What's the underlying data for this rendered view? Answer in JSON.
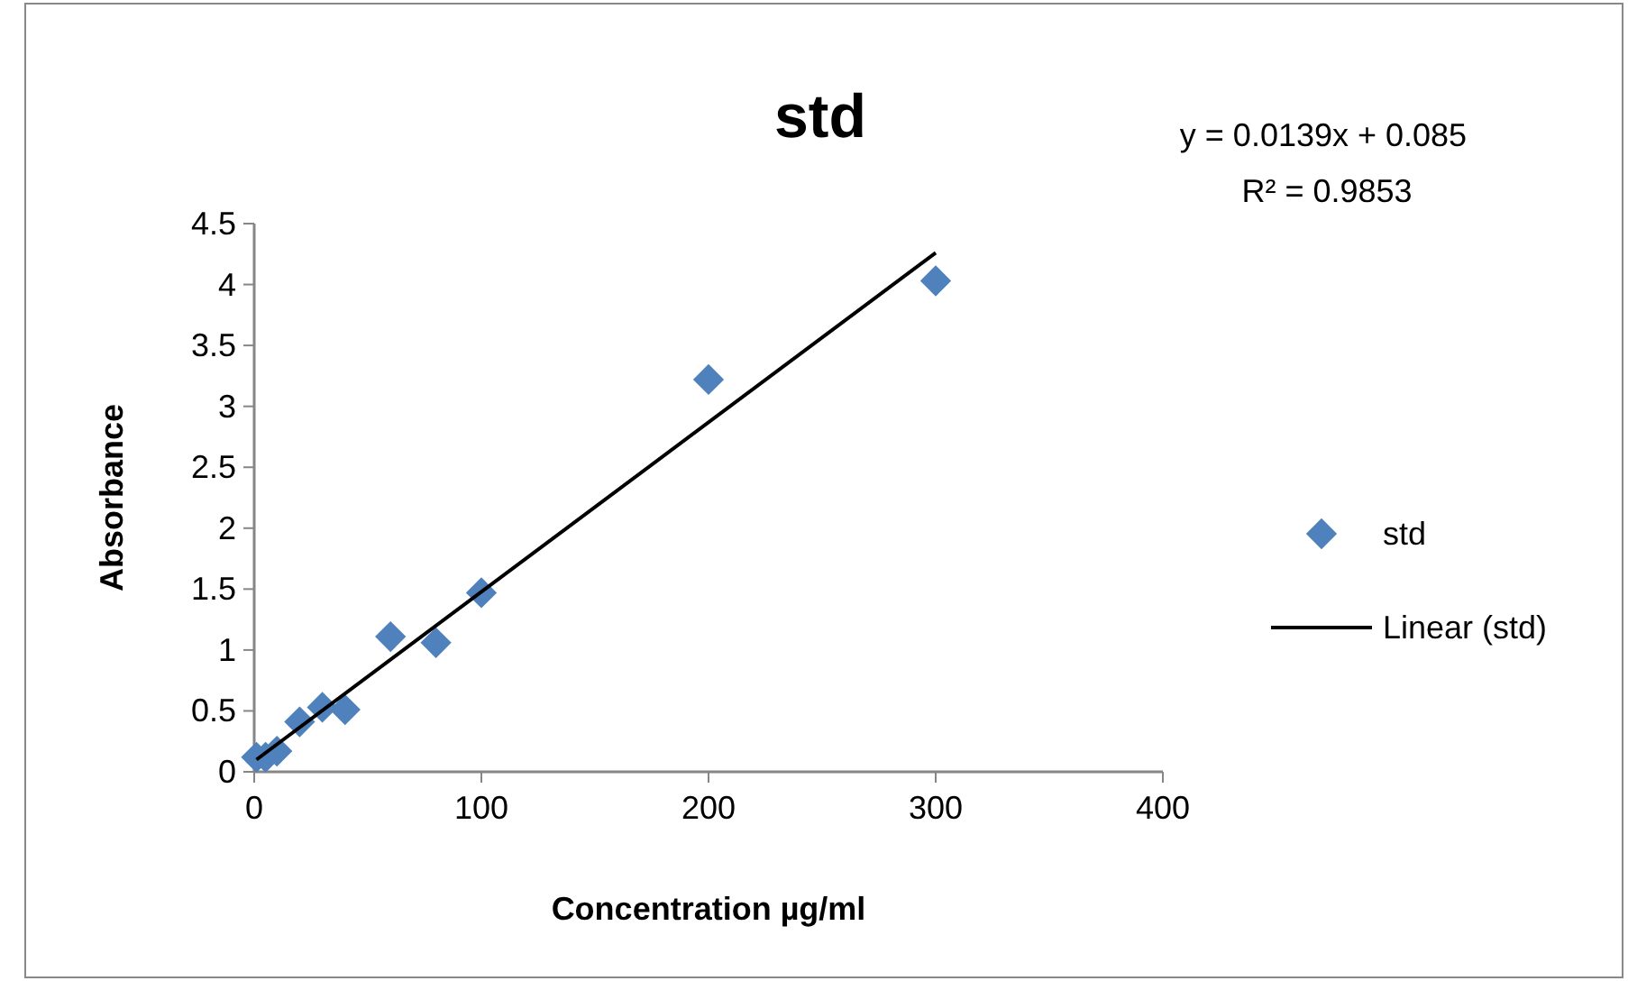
{
  "chart_data": {
    "type": "scatter",
    "title": "std",
    "xlabel": "Concentration µg/ml",
    "ylabel": "Absorbance",
    "xlim": [
      0,
      400
    ],
    "xticks": [
      0,
      100,
      200,
      300,
      400
    ],
    "ylim": [
      0,
      4.5
    ],
    "yticks": [
      0,
      0.5,
      1,
      1.5,
      2,
      2.5,
      3,
      3.5,
      4,
      4.5
    ],
    "grid": false,
    "legend": "right",
    "marker": "diamond",
    "annotations": [
      "y = 0.0139x + 0.085",
      "R² = 0.9853"
    ],
    "series": [
      {
        "name": "std",
        "color": "#4f81bd",
        "x": [
          1,
          5,
          10,
          20,
          30,
          40,
          60,
          80,
          100,
          200,
          300
        ],
        "values": [
          0.12,
          0.12,
          0.17,
          0.41,
          0.53,
          0.51,
          1.11,
          1.06,
          1.47,
          3.22,
          4.03
        ]
      },
      {
        "name": "Linear (std)",
        "type": "line",
        "color": "#000000",
        "line_style": "solid",
        "marker": "none",
        "x": [
          1,
          300
        ],
        "values": [
          0.1,
          4.26
        ]
      }
    ]
  }
}
